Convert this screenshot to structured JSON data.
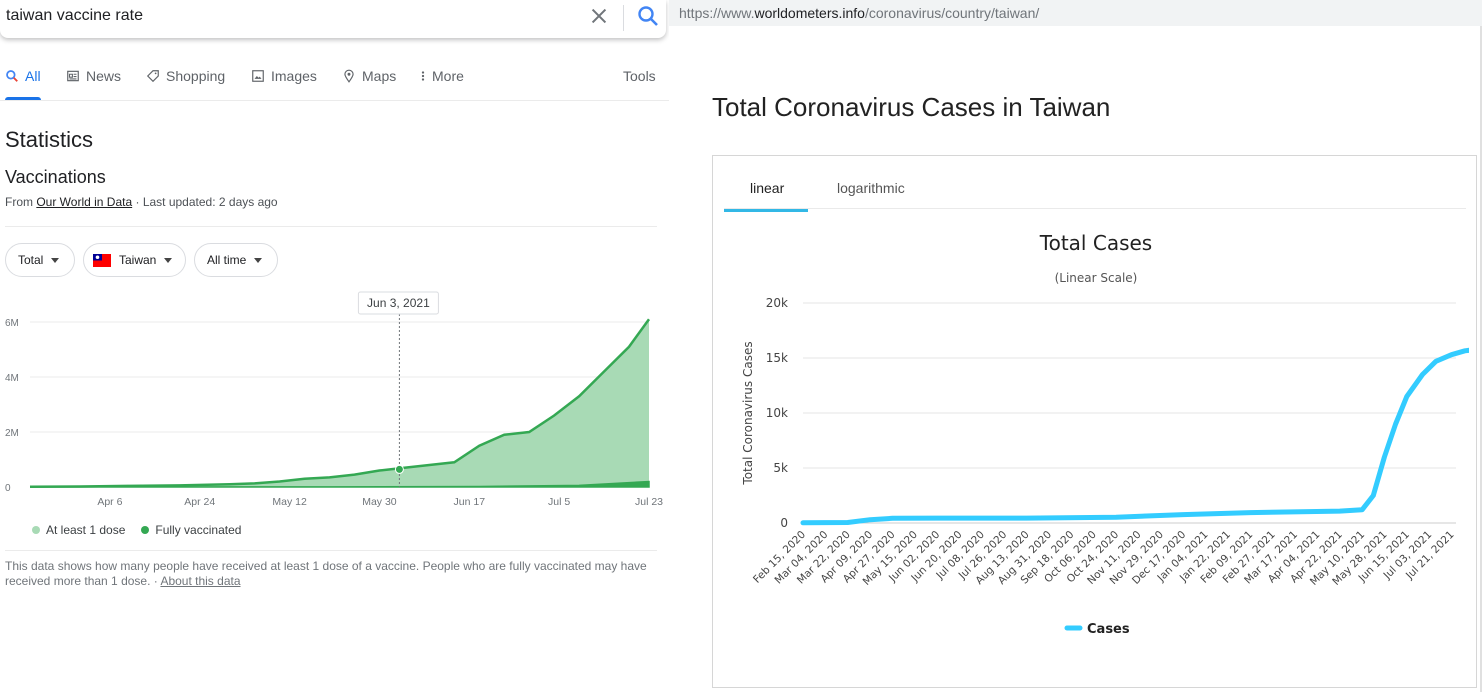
{
  "search": {
    "query": "taiwan vaccine rate",
    "tabs": [
      {
        "label": "All",
        "icon": "search-icon"
      },
      {
        "label": "News",
        "icon": "news-icon"
      },
      {
        "label": "Shopping",
        "icon": "tag-icon"
      },
      {
        "label": "Images",
        "icon": "image-icon"
      },
      {
        "label": "Maps",
        "icon": "map-pin-icon"
      },
      {
        "label": "More",
        "icon": "more-vert-icon"
      }
    ],
    "tools_label": "Tools"
  },
  "stats": {
    "heading": "Statistics",
    "subheading": "Vaccinations",
    "source_prefix": "From ",
    "source_link": "Our World in Data",
    "updated": " · Last updated: 2 days ago",
    "filters": {
      "total": "Total",
      "country": "Taiwan",
      "range": "All time"
    },
    "tooltip": "Jun 3, 2021",
    "legend": [
      {
        "label": "At least 1 dose",
        "color": "#a8dab5"
      },
      {
        "label": "Fully vaccinated",
        "color": "#34a853"
      }
    ],
    "note": "This data shows how many people have received at least 1 dose of a vaccine. People who are fully vaccinated may have received more than 1 dose.",
    "note_sep": " · ",
    "about_link": "About this data"
  },
  "browser": {
    "url_prefix": "https://www.",
    "url_domain": "worldometers.info",
    "url_path": "/coronavirus/country/taiwan/"
  },
  "worldometer": {
    "page_title": "Total Coronavirus Cases in Taiwan",
    "tab_linear": "linear",
    "tab_log": "logarithmic"
  },
  "chart_data": [
    {
      "type": "area",
      "title": "Vaccinations",
      "x_labels": [
        "Apr 6",
        "Apr 24",
        "May 12",
        "May 30",
        "Jun 17",
        "Jul 5",
        "Jul 23"
      ],
      "y_ticks": [
        "0",
        "2M",
        "4M",
        "6M"
      ],
      "ylim": [
        0,
        6400000
      ],
      "x_start": "Mar 21",
      "x_end": "Jul 23",
      "series": [
        {
          "name": "At least 1 dose",
          "color": "#a8dab5",
          "line_color": "#34a853",
          "x_days": [
            0,
            10,
            20,
            30,
            40,
            45,
            50,
            55,
            60,
            65,
            70,
            75,
            80,
            85,
            90,
            95,
            100,
            105,
            110,
            115,
            120,
            124
          ],
          "values": [
            10000,
            20000,
            40000,
            60000,
            100000,
            130000,
            200000,
            300000,
            350000,
            450000,
            600000,
            700000,
            800000,
            900000,
            1500000,
            1900000,
            2000000,
            2600000,
            3300000,
            4200000,
            5100000,
            6100000
          ]
        },
        {
          "name": "Fully vaccinated",
          "color": "#34a853",
          "x_days": [
            0,
            60,
            90,
            110,
            124
          ],
          "values": [
            0,
            5000,
            20000,
            60000,
            200000
          ]
        }
      ],
      "highlight": {
        "label": "Jun 3, 2021",
        "x_day": 74,
        "value": 640000
      }
    },
    {
      "type": "line",
      "title": "Total Cases",
      "subtitle": "(Linear Scale)",
      "ylabel": "Total Coronavirus Cases",
      "y_ticks": [
        "0",
        "5k",
        "10k",
        "15k",
        "20k"
      ],
      "ylim": [
        0,
        20000
      ],
      "x_labels": [
        "Feb 15, 2020",
        "Mar 04, 2020",
        "Mar 22, 2020",
        "Apr 09, 2020",
        "Apr 27, 2020",
        "May 15, 2020",
        "Jun 02, 2020",
        "Jun 20, 2020",
        "Jul 08, 2020",
        "Jul 26, 2020",
        "Aug 13, 2020",
        "Aug 31, 2020",
        "Sep 18, 2020",
        "Oct 06, 2020",
        "Oct 24, 2020",
        "Nov 11, 2020",
        "Nov 29, 2020",
        "Dec 17, 2020",
        "Jan 04, 2021",
        "Jan 22, 2021",
        "Feb 09, 2021",
        "Feb 27, 2021",
        "Mar 17, 2021",
        "Apr 04, 2021",
        "Apr 22, 2021",
        "May 10, 2021",
        "May 28, 2021",
        "Jun 15, 2021",
        "Jul 03, 2021",
        "Jul 21, 2021"
      ],
      "legend": "Cases",
      "series": [
        {
          "name": "Cases",
          "color": "#33ccff",
          "points": [
            [
              0,
              18
            ],
            [
              2,
              45
            ],
            [
              3,
              300
            ],
            [
              4,
              429
            ],
            [
              6,
              443
            ],
            [
              10,
              450
            ],
            [
              14,
              530
            ],
            [
              17,
              766
            ],
            [
              20,
              950
            ],
            [
              24,
              1080
            ],
            [
              25,
              1200
            ],
            [
              25.5,
              2500
            ],
            [
              26,
              6000
            ],
            [
              26.5,
              9000
            ],
            [
              27,
              11500
            ],
            [
              27.7,
              13500
            ],
            [
              28.3,
              14700
            ],
            [
              29,
              15300
            ],
            [
              29.6,
              15650
            ],
            [
              30.2,
              15800
            ]
          ]
        }
      ]
    }
  ]
}
